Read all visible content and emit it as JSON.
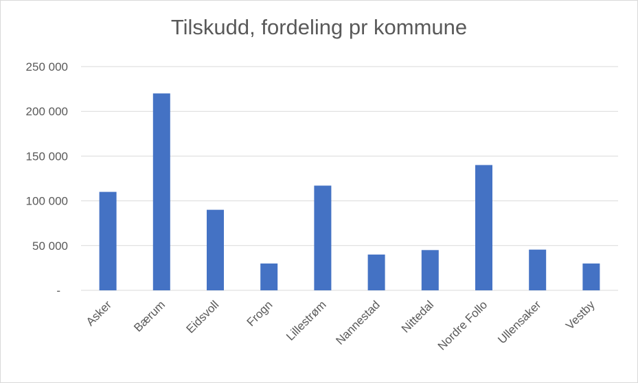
{
  "chart_data": {
    "type": "bar",
    "title": "Tilskudd, fordeling pr kommune",
    "categories": [
      "Asker",
      "Bærum",
      "Eidsvoll",
      "Frogn",
      "Lillestrøm",
      "Nannestad",
      "Nittedal",
      "Nordre Follo",
      "Ullensaker",
      "Vestby"
    ],
    "values": [
      110000,
      220000,
      90000,
      30000,
      117000,
      40000,
      45000,
      140000,
      45500,
      30000
    ],
    "ylim": [
      0,
      250000
    ],
    "yticks": [
      0,
      50000,
      100000,
      150000,
      200000,
      250000
    ],
    "ytick_labels": [
      "-",
      "50 000",
      "100 000",
      "150 000",
      "200 000",
      "250 000"
    ],
    "grid": true,
    "bar_color": "#4472C4",
    "grid_color": "#d9d9d9"
  }
}
